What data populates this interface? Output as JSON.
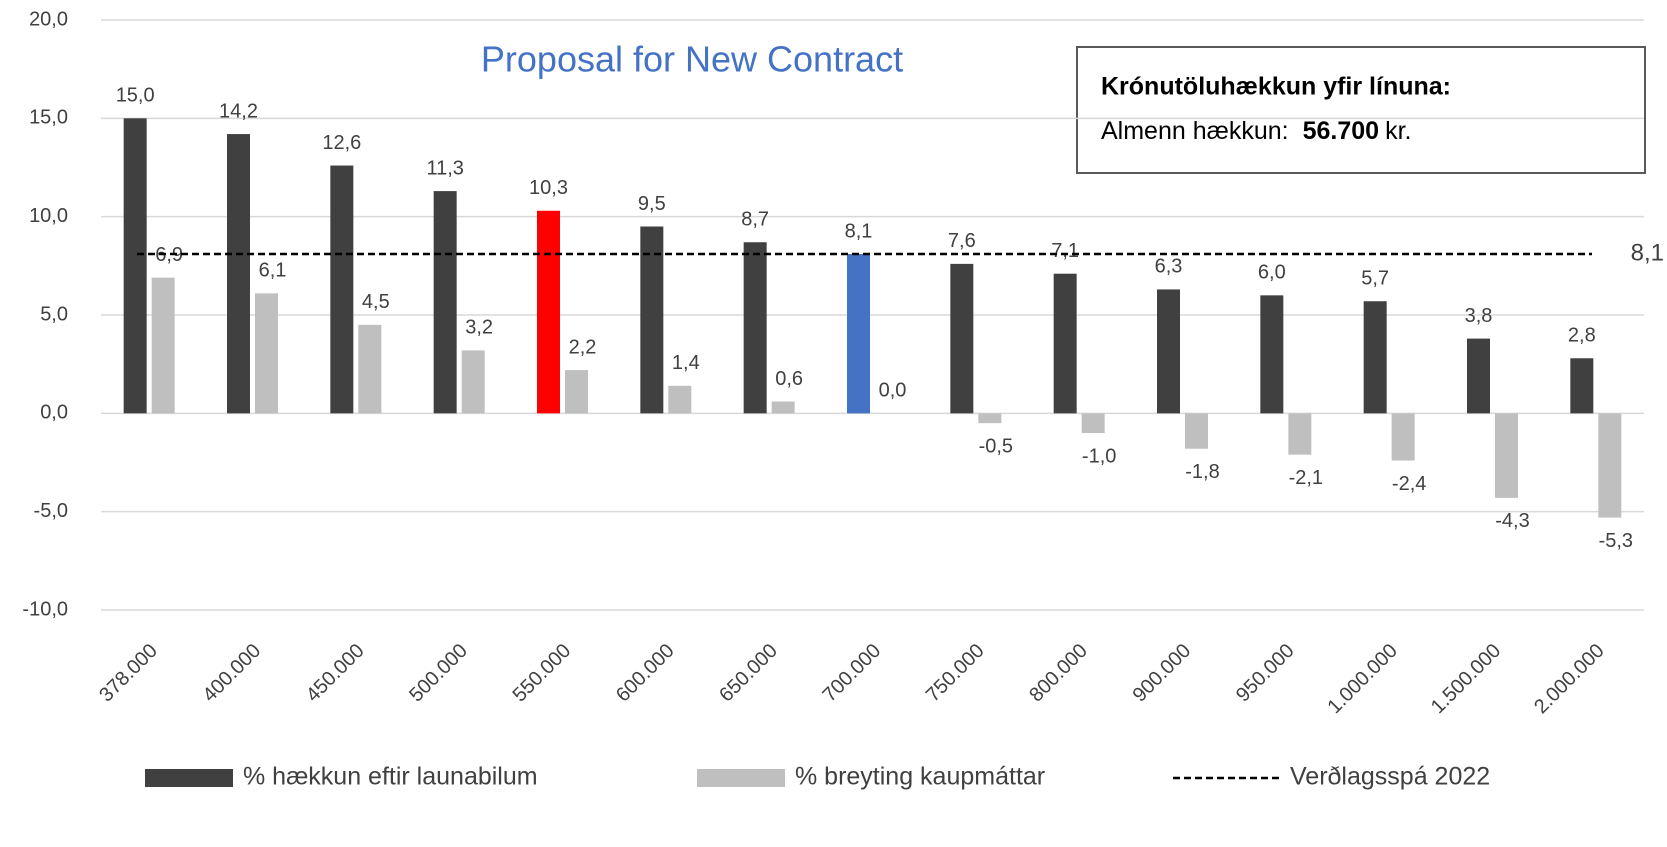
{
  "chart_data": {
    "type": "bar",
    "title": "Proposal for New Contract",
    "categories": [
      "378.000",
      "400.000",
      "450.000",
      "500.000",
      "550.000",
      "600.000",
      "650.000",
      "700.000",
      "750.000",
      "800.000",
      "900.000",
      "950.000",
      "1.000.000",
      "1.500.000",
      "2.000.000"
    ],
    "series": [
      {
        "name": "% hækkun eftir launabilum",
        "color": "#404040",
        "point_colors": [
          "#404040",
          "#404040",
          "#404040",
          "#404040",
          "#ff0000",
          "#404040",
          "#404040",
          "#4472c4",
          "#404040",
          "#404040",
          "#404040",
          "#404040",
          "#404040",
          "#404040",
          "#404040"
        ],
        "values": [
          15.0,
          14.2,
          12.6,
          11.3,
          10.3,
          9.5,
          8.7,
          8.1,
          7.6,
          7.1,
          6.3,
          6.0,
          5.7,
          3.8,
          2.8
        ],
        "value_labels": [
          "15,0",
          "14,2",
          "12,6",
          "11,3",
          "10,3",
          "9,5",
          "8,7",
          "8,1",
          "7,6",
          "7,1",
          "6,3",
          "6,0",
          "5,7",
          "3,8",
          "2,8"
        ]
      },
      {
        "name": "% breyting kaupmáttar",
        "color": "#bfbfbf",
        "values": [
          6.9,
          6.1,
          4.5,
          3.2,
          2.2,
          1.4,
          0.6,
          0.0,
          -0.5,
          -1.0,
          -1.8,
          -2.1,
          -2.4,
          -4.3,
          -5.3
        ],
        "value_labels": [
          "6,9",
          "6,1",
          "4,5",
          "3,2",
          "2,2",
          "1,4",
          "0,6",
          "0,0",
          "-0,5",
          "-1,0",
          "-1,8",
          "-2,1",
          "-2,4",
          "-4,3",
          "-5,3"
        ]
      }
    ],
    "reference_line": {
      "name": "Verðlagsspá 2022",
      "value": 8.1,
      "label": "8,1",
      "color": "#000000",
      "dashed": true
    },
    "annotation_box": {
      "title": "Krónutöluhækkun yfir línuna:",
      "label": "Almenn hækkun:",
      "amount": "56.700",
      "unit": "kr."
    },
    "ylim": [
      -10,
      20
    ],
    "yticks": [
      {
        "value": -10,
        "label": "-10,0"
      },
      {
        "value": -5,
        "label": "-5,0"
      },
      {
        "value": 0,
        "label": "0,0"
      },
      {
        "value": 5,
        "label": "5,0"
      },
      {
        "value": 10,
        "label": "10,0"
      },
      {
        "value": 15,
        "label": "15,0"
      },
      {
        "value": 20,
        "label": "20,0"
      }
    ],
    "grid": true,
    "legend": "bottom"
  }
}
